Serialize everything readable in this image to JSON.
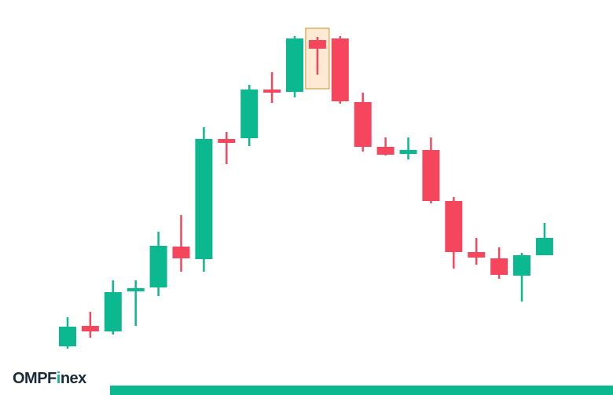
{
  "brand": {
    "logo_text_pre": "OMPF",
    "logo_text_i": "i",
    "logo_text_post": "nex"
  },
  "colors": {
    "up": "#0cb88f",
    "down": "#f6465d",
    "highlight_fill": "#fde9d4",
    "highlight_border": "#c8961e",
    "footer_bar": "#0cb88f"
  },
  "chart_data": {
    "type": "candlestick",
    "title": "",
    "xlabel": "",
    "ylabel": "",
    "axes_visible": false,
    "grid": false,
    "ylim": [
      0,
      503
    ],
    "highlighted_index": 11,
    "candles": [
      {
        "open": 62,
        "close": 87,
        "high": 99,
        "low": 59
      },
      {
        "open": 88,
        "close": 81,
        "high": 106,
        "low": 73
      },
      {
        "open": 81,
        "close": 131,
        "high": 146,
        "low": 77
      },
      {
        "open": 132,
        "close": 136,
        "high": 146,
        "low": 88
      },
      {
        "open": 137,
        "close": 190,
        "high": 208,
        "low": 126
      },
      {
        "open": 189,
        "close": 174,
        "high": 229,
        "low": 157
      },
      {
        "open": 173,
        "close": 326,
        "high": 341,
        "low": 157
      },
      {
        "open": 326,
        "close": 321,
        "high": 335,
        "low": 294
      },
      {
        "open": 327,
        "close": 389,
        "high": 395,
        "low": 317
      },
      {
        "open": 389,
        "close": 385,
        "high": 411,
        "low": 372
      },
      {
        "open": 386,
        "close": 454,
        "high": 457,
        "low": 379
      },
      {
        "open": 452,
        "close": 441,
        "high": 456,
        "low": 408
      },
      {
        "open": 454,
        "close": 374,
        "high": 457,
        "low": 371
      },
      {
        "open": 373,
        "close": 316,
        "high": 385,
        "low": 310
      },
      {
        "open": 316,
        "close": 306,
        "high": 328,
        "low": 305
      },
      {
        "open": 307,
        "close": 312,
        "high": 328,
        "low": 300
      },
      {
        "open": 312,
        "close": 247,
        "high": 328,
        "low": 244
      },
      {
        "open": 247,
        "close": 182,
        "high": 252,
        "low": 161
      },
      {
        "open": 182,
        "close": 175,
        "high": 200,
        "low": 166
      },
      {
        "open": 174,
        "close": 153,
        "high": 188,
        "low": 148
      },
      {
        "open": 152,
        "close": 178,
        "high": 181,
        "low": 119
      },
      {
        "open": 178,
        "close": 200,
        "high": 219,
        "low": 178
      }
    ]
  }
}
